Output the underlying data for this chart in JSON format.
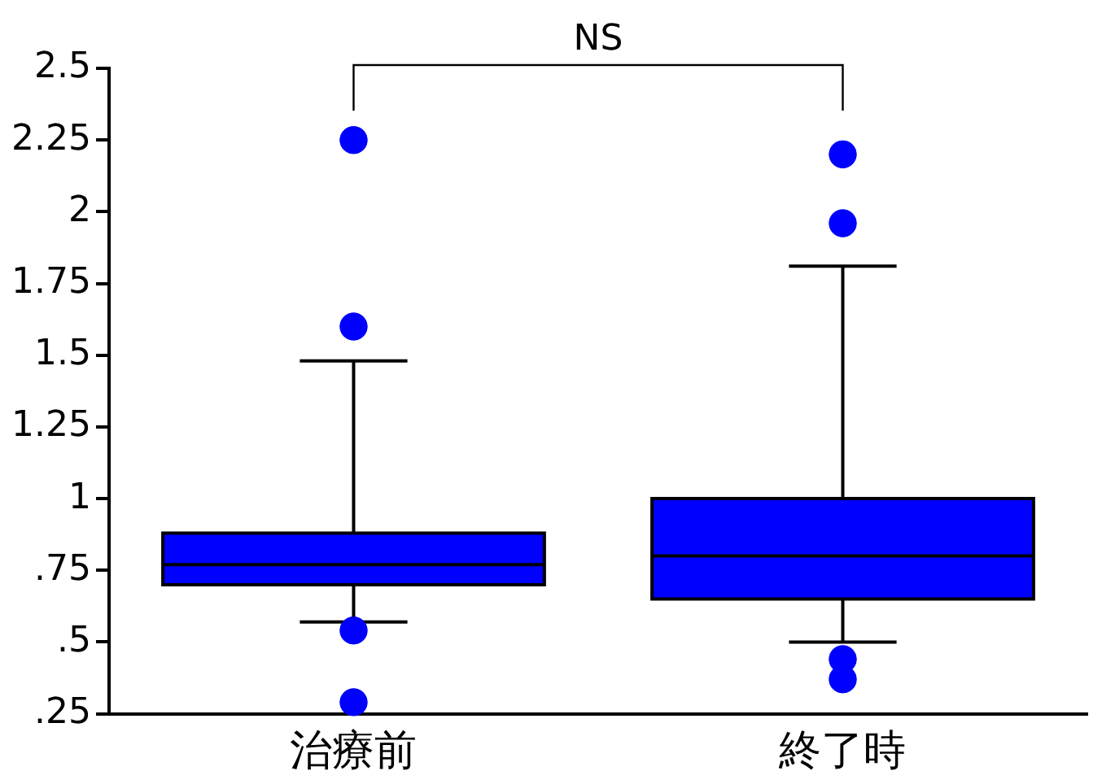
{
  "chart_data": {
    "type": "box",
    "categories": [
      "治療前",
      "終了時"
    ],
    "series": [
      {
        "color": "#0000ff",
        "boxes": [
          {
            "low": 0.57,
            "q1": 0.7,
            "median": 0.77,
            "q3": 0.88,
            "high": 1.48,
            "outliers": [
              2.25,
              1.6,
              0.54,
              0.29
            ]
          },
          {
            "low": 0.5,
            "q1": 0.65,
            "median": 0.8,
            "q3": 1.0,
            "high": 1.81,
            "outliers": [
              2.2,
              1.96,
              0.44,
              0.37
            ]
          }
        ]
      }
    ],
    "ylim": [
      0.25,
      2.5
    ],
    "yticks": [
      {
        "value": 0.25,
        "label": ".25"
      },
      {
        "value": 0.5,
        "label": ".5"
      },
      {
        "value": 0.75,
        "label": ".75"
      },
      1,
      1.25,
      1.5,
      1.75,
      2,
      2.25,
      2.5
    ],
    "annotations": [
      "NS"
    ],
    "grid": false,
    "legend": false
  }
}
